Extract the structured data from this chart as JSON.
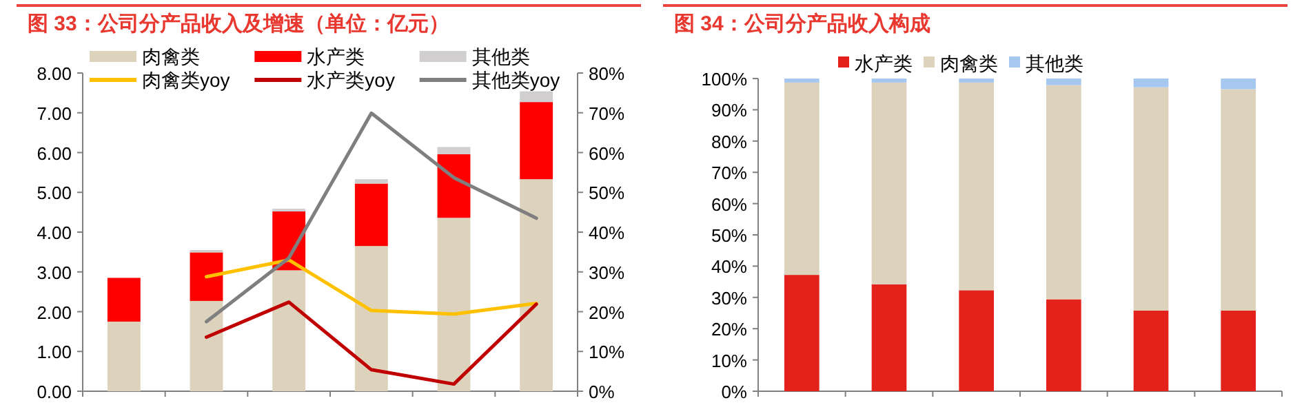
{
  "chart_data": [
    {
      "type": "bar",
      "title": "图 33：公司分产品收入及增速（单位：亿元）",
      "categories": [
        null,
        null,
        null,
        null,
        null,
        null
      ],
      "stacked": true,
      "legend": "top",
      "series": [
        {
          "name": "肉禽类",
          "color": "#ddd3bd",
          "values": [
            1.75,
            2.27,
            3.04,
            3.65,
            4.36,
            5.33
          ]
        },
        {
          "name": "水产类",
          "color": "#ff0000",
          "values": [
            1.1,
            1.22,
            1.48,
            1.57,
            1.6,
            1.94
          ]
        },
        {
          "name": "其他类",
          "color": "#d0cece",
          "values": [
            0,
            0.06,
            0.07,
            0.11,
            0.18,
            0.27
          ]
        },
        {
          "name": "肉禽类yoy",
          "type": "line",
          "axis": "y2",
          "color": "#ffc000",
          "values": [
            null,
            28.8,
            33.0,
            20.3,
            19.4,
            22.1
          ]
        },
        {
          "name": "水产类yoy",
          "type": "line",
          "axis": "y2",
          "color": "#c00000",
          "values": [
            null,
            13.6,
            22.4,
            5.4,
            1.8,
            21.9
          ]
        },
        {
          "name": "其他类yoy",
          "type": "line",
          "axis": "y2",
          "color": "#7f7f7f",
          "values": [
            null,
            17.5,
            33.5,
            69.9,
            53.7,
            43.5
          ]
        }
      ],
      "ylim": [
        0,
        8
      ],
      "yticks": [
        {
          "value": 0,
          "label": "0.00"
        },
        {
          "value": 1,
          "label": "1.00"
        },
        {
          "value": 2,
          "label": "2.00"
        },
        {
          "value": 3,
          "label": "3.00"
        },
        {
          "value": 4,
          "label": "4.00"
        },
        {
          "value": 5,
          "label": "5.00"
        },
        {
          "value": 6,
          "label": "6.00"
        },
        {
          "value": 7,
          "label": "7.00"
        },
        {
          "value": 8,
          "label": "8.00"
        }
      ],
      "y2lim": [
        0,
        80
      ],
      "y2ticks": [
        {
          "value": 0,
          "label": "0%"
        },
        {
          "value": 10,
          "label": "10%"
        },
        {
          "value": 20,
          "label": "20%"
        },
        {
          "value": 30,
          "label": "30%"
        },
        {
          "value": 40,
          "label": "40%"
        },
        {
          "value": 50,
          "label": "50%"
        },
        {
          "value": 60,
          "label": "60%"
        },
        {
          "value": 70,
          "label": "70%"
        },
        {
          "value": 80,
          "label": "80%"
        }
      ]
    },
    {
      "type": "bar",
      "title": "图 34：公司分产品收入构成",
      "categories": [
        null,
        null,
        null,
        null,
        null,
        null
      ],
      "stacked": true,
      "legend": "top",
      "series": [
        {
          "name": "水产类",
          "color": "#e3231b",
          "values": [
            37.2,
            34.2,
            32.3,
            29.4,
            25.8,
            25.8
          ]
        },
        {
          "name": "肉禽类",
          "color": "#ddd3bd",
          "values": [
            61.5,
            64.5,
            66.4,
            68.5,
            71.4,
            70.8
          ]
        },
        {
          "name": "其他类",
          "color": "#a6c8f0",
          "values": [
            1.3,
            1.3,
            1.3,
            2.1,
            2.8,
            3.4
          ]
        }
      ],
      "ylim": [
        0,
        100
      ],
      "yticks": [
        {
          "value": 0,
          "label": "0%"
        },
        {
          "value": 10,
          "label": "10%"
        },
        {
          "value": 20,
          "label": "20%"
        },
        {
          "value": 30,
          "label": "30%"
        },
        {
          "value": 40,
          "label": "40%"
        },
        {
          "value": 50,
          "label": "50%"
        },
        {
          "value": 60,
          "label": "60%"
        },
        {
          "value": 70,
          "label": "70%"
        },
        {
          "value": 80,
          "label": "80%"
        },
        {
          "value": 90,
          "label": "90%"
        },
        {
          "value": 100,
          "label": "100%"
        }
      ]
    }
  ]
}
